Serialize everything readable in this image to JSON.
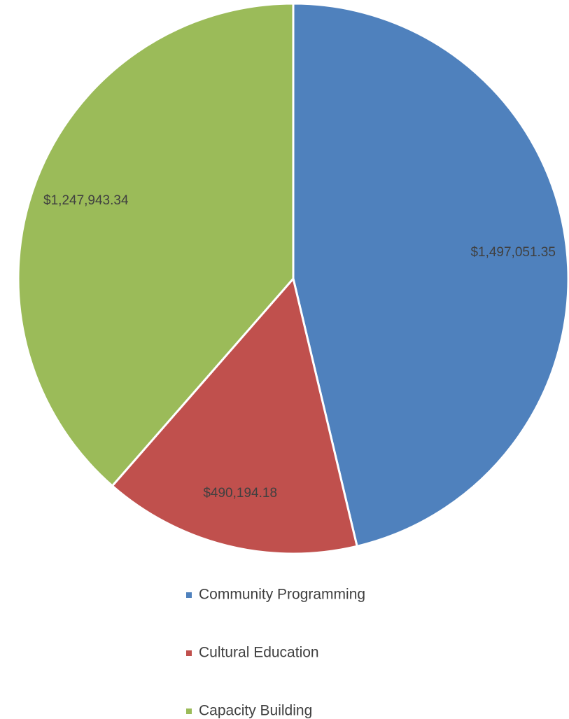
{
  "chart_data": {
    "type": "pie",
    "title": "",
    "categories": [
      "Community Programming",
      "Cultural Education",
      "Capacity Building"
    ],
    "values": [
      1497051.35,
      490194.18,
      1247943.34
    ],
    "data_labels": [
      "$1,497,051.35",
      "$490,194.18",
      "$1,247,943.34"
    ],
    "colors": [
      "#4f81bd",
      "#c0504d",
      "#9bbb59"
    ],
    "start_angle": "12 o'clock",
    "direction": "clockwise",
    "legend": {
      "position": "bottom",
      "entries": [
        "Community Programming",
        "Cultural Education",
        "Capacity Building"
      ]
    }
  }
}
